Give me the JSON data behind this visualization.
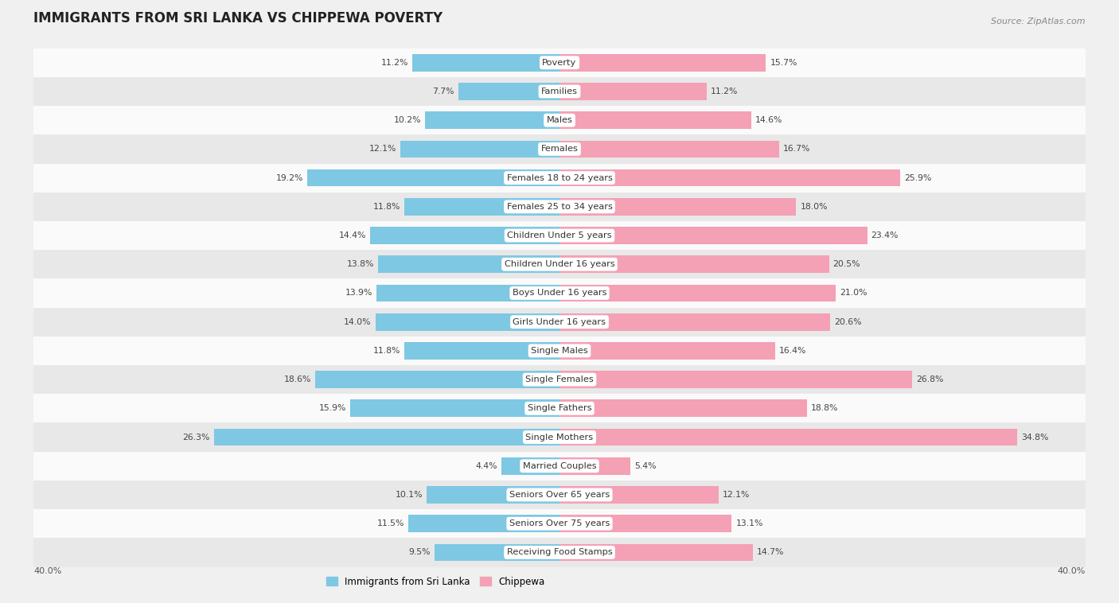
{
  "title": "IMMIGRANTS FROM SRI LANKA VS CHIPPEWA POVERTY",
  "source": "Source: ZipAtlas.com",
  "categories": [
    "Poverty",
    "Families",
    "Males",
    "Females",
    "Females 18 to 24 years",
    "Females 25 to 34 years",
    "Children Under 5 years",
    "Children Under 16 years",
    "Boys Under 16 years",
    "Girls Under 16 years",
    "Single Males",
    "Single Females",
    "Single Fathers",
    "Single Mothers",
    "Married Couples",
    "Seniors Over 65 years",
    "Seniors Over 75 years",
    "Receiving Food Stamps"
  ],
  "sri_lanka": [
    11.2,
    7.7,
    10.2,
    12.1,
    19.2,
    11.8,
    14.4,
    13.8,
    13.9,
    14.0,
    11.8,
    18.6,
    15.9,
    26.3,
    4.4,
    10.1,
    11.5,
    9.5
  ],
  "chippewa": [
    15.7,
    11.2,
    14.6,
    16.7,
    25.9,
    18.0,
    23.4,
    20.5,
    21.0,
    20.6,
    16.4,
    26.8,
    18.8,
    34.8,
    5.4,
    12.1,
    13.1,
    14.7
  ],
  "sri_lanka_color": "#7ec8e3",
  "chippewa_color": "#f4a0b5",
  "background_color": "#f0f0f0",
  "row_light": "#fafafa",
  "row_dark": "#e8e8e8",
  "axis_limit": 40.0,
  "bar_height": 0.6,
  "legend_sri_lanka": "Immigrants from Sri Lanka",
  "legend_chippewa": "Chippewa",
  "title_fontsize": 12,
  "label_fontsize": 8.2,
  "value_fontsize": 7.8,
  "source_fontsize": 8.0
}
